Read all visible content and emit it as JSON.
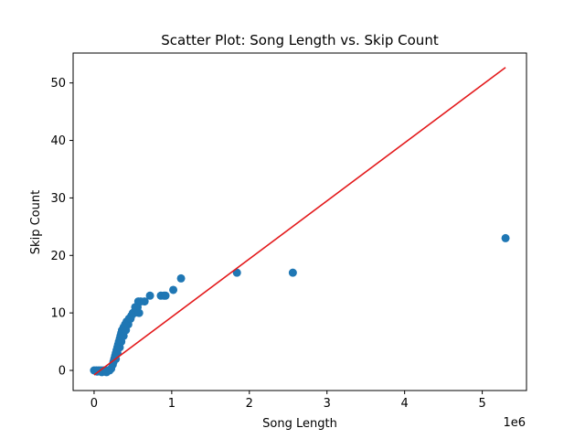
{
  "chart_data": {
    "type": "scatter",
    "title": "Scatter Plot: Song Length vs. Skip Count",
    "xlabel": "Song Length",
    "ylabel": "Skip Count",
    "x_offset_label": "1e6",
    "x_unit_multiplier": 1000000,
    "xlim": [
      -0.27,
      5.57
    ],
    "ylim": [
      -3.5,
      55.2
    ],
    "x_ticks": [
      0,
      1,
      2,
      3,
      4,
      5
    ],
    "y_ticks": [
      0,
      10,
      20,
      30,
      40,
      50
    ],
    "grid": false,
    "legend": "none",
    "colors": {
      "points": "#1f77b4",
      "trend_line": "#e31a1c",
      "axes": "#000000"
    },
    "series": [
      {
        "points": [
          [
            0,
            0
          ],
          [
            0.03,
            0
          ],
          [
            0.06,
            0
          ],
          [
            0.09,
            0
          ],
          [
            0.12,
            0
          ],
          [
            0.15,
            0
          ],
          [
            0.18,
            0
          ],
          [
            0.2,
            0
          ],
          [
            0.04,
            -0.2
          ],
          [
            0.1,
            -0.3
          ],
          [
            0.16,
            -0.3
          ],
          [
            0.22,
            0.3
          ],
          [
            0.24,
            1
          ],
          [
            0.25,
            1.5
          ],
          [
            0.26,
            2
          ],
          [
            0.27,
            2.5
          ],
          [
            0.28,
            3
          ],
          [
            0.29,
            3.5
          ],
          [
            0.3,
            4
          ],
          [
            0.31,
            4.5
          ],
          [
            0.32,
            5
          ],
          [
            0.33,
            5.5
          ],
          [
            0.34,
            6
          ],
          [
            0.35,
            6.5
          ],
          [
            0.36,
            7
          ],
          [
            0.38,
            7.5
          ],
          [
            0.4,
            8
          ],
          [
            0.42,
            8.5
          ],
          [
            0.45,
            9
          ],
          [
            0.48,
            9.5
          ],
          [
            0.52,
            10
          ],
          [
            0.55,
            10.5
          ],
          [
            0.56,
            11
          ],
          [
            0.57,
            12
          ],
          [
            0.6,
            12
          ],
          [
            0.65,
            12
          ],
          [
            0.72,
            13
          ],
          [
            0.28,
            2
          ],
          [
            0.3,
            3
          ],
          [
            0.33,
            4
          ],
          [
            0.35,
            5
          ],
          [
            0.38,
            6
          ],
          [
            0.41,
            7
          ],
          [
            0.44,
            8
          ],
          [
            0.47,
            9
          ],
          [
            0.5,
            10
          ],
          [
            0.53,
            11
          ],
          [
            0.58,
            10
          ],
          [
            0.86,
            13
          ],
          [
            0.9,
            13
          ],
          [
            0.92,
            13
          ],
          [
            1.02,
            14
          ],
          [
            1.12,
            16
          ],
          [
            1.84,
            17
          ],
          [
            2.56,
            17
          ],
          [
            5.3,
            23
          ]
        ]
      }
    ],
    "trend_line": {
      "x": [
        0,
        5.3
      ],
      "y": [
        -0.8,
        52.7
      ]
    }
  }
}
